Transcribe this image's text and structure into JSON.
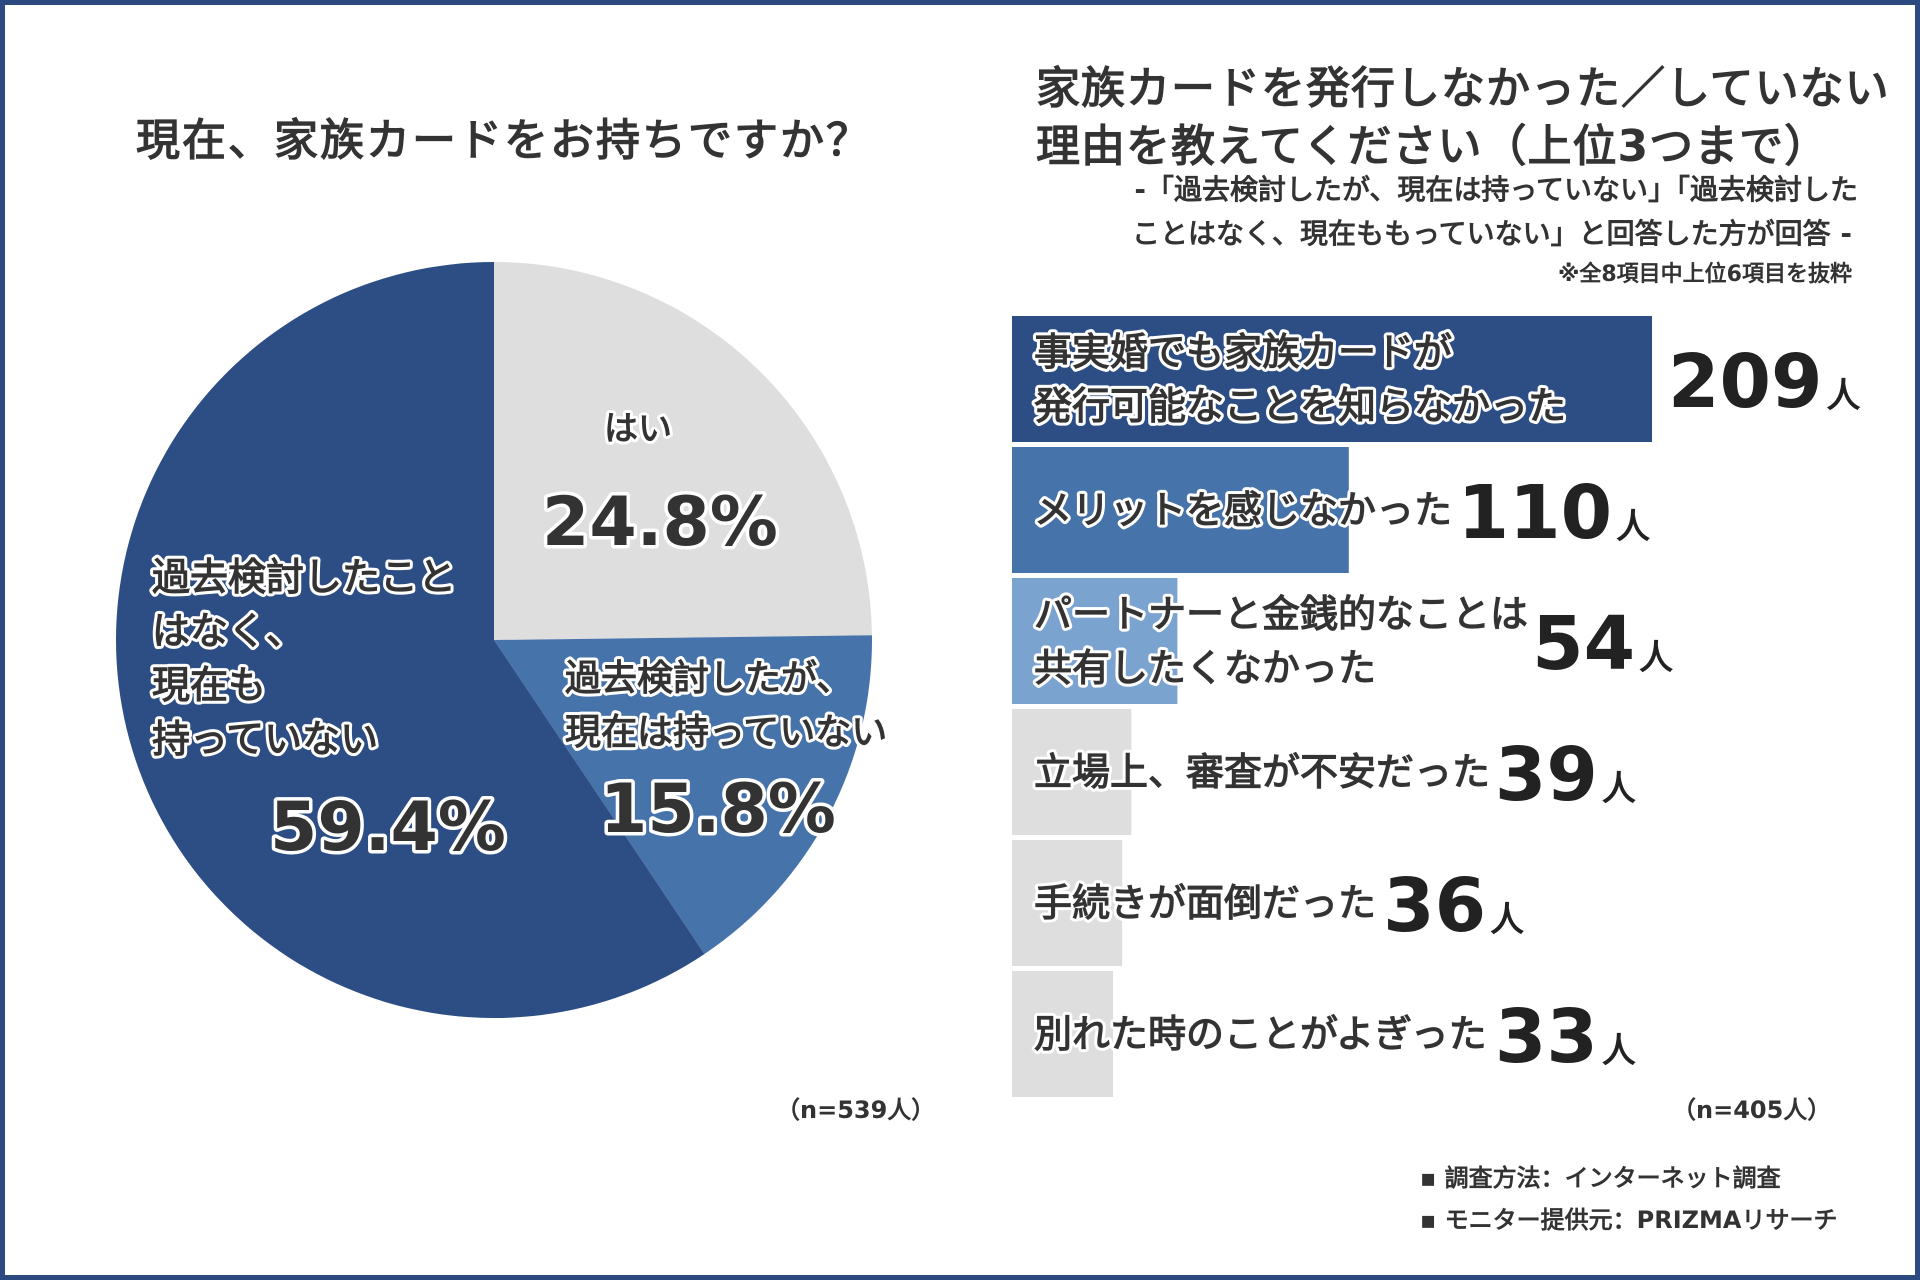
{
  "left_chart": {
    "title": "現在、家族カードをお持ちですか？",
    "n_label": "（n=539人）"
  },
  "right_chart": {
    "title_line1": "家族カードを発行しなかった／していない",
    "title_line2": "理由を教えてください（上位3つまで）",
    "subtitle_line1": "-「過去検討したが、現在は持っていない」「過去検討した",
    "subtitle_line2": "ことはなく、現在ももっていない」と回答した方が回答 -",
    "note": "※全8項目中上位6項目を抜粋",
    "n_label": "（n=405人）",
    "unit": "人"
  },
  "footer": {
    "source1": "▪ 調査方法：インターネット調査",
    "source2": "▪ モニター提供元：PRIZMAリサーチ"
  },
  "colors": {
    "frame": "#2c4a80",
    "dark_navy": "#2d4e84",
    "mid_blue": "#4673aa",
    "light_blue": "#7aa3cf",
    "light_gray": "#dedede",
    "text": "#333333"
  },
  "chart_data": [
    {
      "type": "pie",
      "title": "現在、家族カードをお持ちですか？",
      "slices": [
        {
          "label": "はい",
          "label_lines": [
            "はい"
          ],
          "value": 24.8,
          "value_label": "24.8%",
          "color": "#dedede"
        },
        {
          "label": "過去検討したが、現在は持っていない",
          "label_lines": [
            "過去検討したが、",
            "現在は持っていない"
          ],
          "value": 15.8,
          "value_label": "15.8%",
          "color": "#4673aa"
        },
        {
          "label": "過去検討したことはなく、現在も持っていない",
          "label_lines": [
            "過去検討したこと",
            "はなく、",
            "現在も",
            "持っていない"
          ],
          "value": 59.4,
          "value_label": "59.4%",
          "color": "#2d4e84"
        }
      ],
      "start": "12 o'clock, clockwise"
    },
    {
      "type": "bar",
      "orientation": "horizontal",
      "title": "家族カードを発行しなかった／していない理由を教えてください（上位3つまで）",
      "xlim": [
        0,
        209
      ],
      "categories": [
        {
          "label_lines": [
            "事実婚でも家族カードが",
            "発行可能なことを知らなかった"
          ],
          "value": 209,
          "color": "#2d4e84"
        },
        {
          "label_lines": [
            "メリットを感じなかった"
          ],
          "value": 110,
          "color": "#4673aa"
        },
        {
          "label_lines": [
            "パートナーと金銭的なことは",
            "共有したくなかった"
          ],
          "value": 54,
          "color": "#7aa3cf"
        },
        {
          "label_lines": [
            "立場上、審査が不安だった"
          ],
          "value": 39,
          "color": "#dedede"
        },
        {
          "label_lines": [
            "手続きが面倒だった"
          ],
          "value": 36,
          "color": "#dedede"
        },
        {
          "label_lines": [
            "別れた時のことがよぎった"
          ],
          "value": 33,
          "color": "#dedede"
        }
      ]
    }
  ]
}
